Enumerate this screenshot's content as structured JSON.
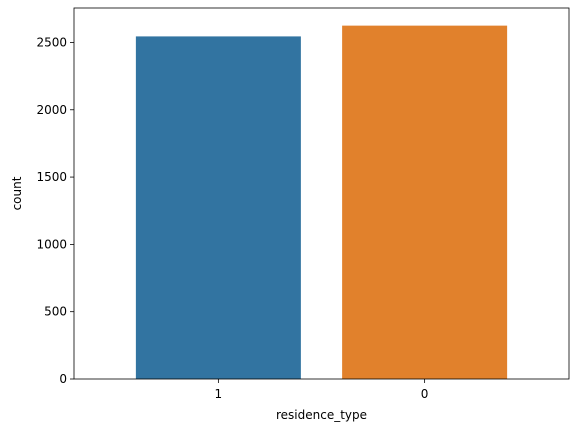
{
  "chart_data": {
    "type": "bar",
    "categories": [
      "1",
      "0"
    ],
    "values": [
      2545,
      2625
    ],
    "colors": [
      "#3274a1",
      "#e1812c"
    ],
    "xlabel": "residence_type",
    "ylabel": "count",
    "ylim": [
      0,
      2756
    ],
    "yticks": [
      0,
      500,
      1000,
      1500,
      2000,
      2500
    ],
    "ytick_labels": [
      "0",
      "500",
      "1000",
      "1500",
      "2000",
      "2500"
    ],
    "grid": false,
    "legend": "none"
  }
}
